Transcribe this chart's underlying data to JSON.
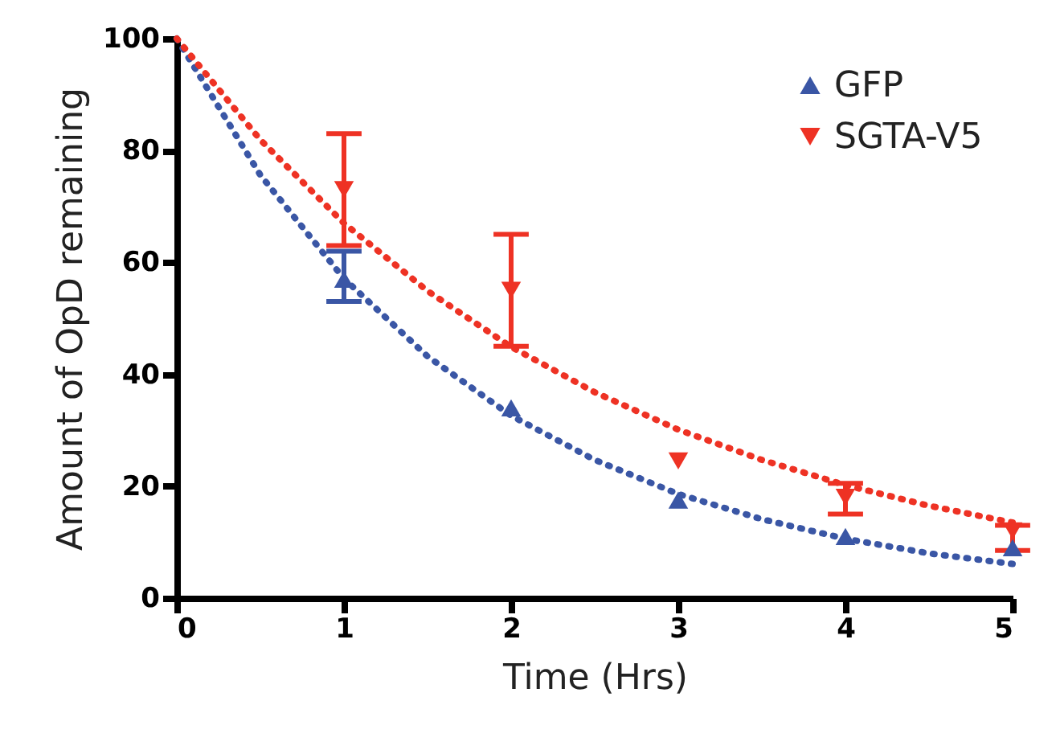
{
  "chart_data": {
    "type": "scatter",
    "xlabel": "Time (Hrs)",
    "ylabel": "Amount of  OpD remaining",
    "x": [
      1,
      2,
      3,
      4,
      5
    ],
    "xlim": [
      0,
      5
    ],
    "xticks": [
      0,
      1,
      2,
      3,
      4,
      5
    ],
    "ylim": [
      0,
      100
    ],
    "yticks": [
      0,
      20,
      40,
      60,
      80,
      100
    ],
    "grid": false,
    "legend": "top right",
    "series": [
      {
        "name": "GFP",
        "marker": "triangle",
        "color": "#3a56a5",
        "values": [
          57,
          34,
          17.5,
          11,
          9
        ],
        "errors": [
          [
            53,
            62
          ],
          null,
          null,
          null,
          null
        ]
      },
      {
        "name": "SGTA-V5",
        "marker": "triangle-down",
        "color": "#ee3224",
        "values": [
          73,
          55,
          24.5,
          18,
          12
        ],
        "errors": [
          [
            63,
            83
          ],
          [
            45,
            65
          ],
          null,
          [
            15,
            20.5
          ],
          [
            8.5,
            13
          ]
        ]
      },
      {
        "type": "line",
        "line_style": "dotted",
        "marker": "none",
        "color": "#3a56a5",
        "x": [
          0,
          0.5,
          1,
          1.5,
          2,
          2.5,
          3,
          3.5,
          4,
          4.5,
          5
        ],
        "values": [
          100,
          75.6,
          57.1,
          43.2,
          32.6,
          24.7,
          18.6,
          14.1,
          10.6,
          8,
          6.1
        ]
      },
      {
        "type": "line",
        "line_style": "dotted",
        "marker": "none",
        "color": "#ee3224",
        "x": [
          0,
          0.5,
          1,
          1.5,
          2,
          2.5,
          3,
          3.5,
          4,
          4.5,
          5
        ],
        "values": [
          100,
          81.9,
          67,
          54.9,
          44.9,
          36.8,
          30.1,
          24.7,
          20.2,
          16.5,
          13.5
        ]
      }
    ]
  }
}
